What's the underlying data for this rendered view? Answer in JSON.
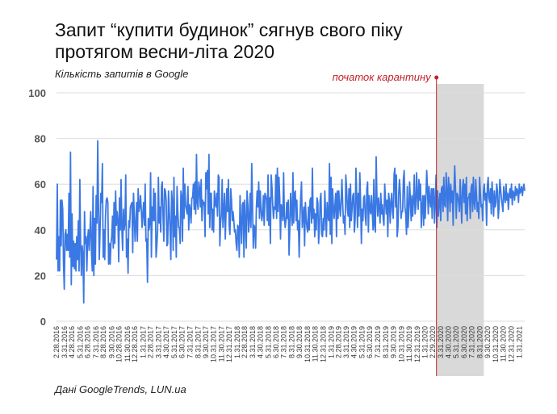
{
  "header": {
    "title_line1": "Запит “купити будинок” сягнув свого піку",
    "title_line2": "протягом весни-літа 2020",
    "subtitle": "Кількість запитів в Google"
  },
  "footer": {
    "source": "Дані GoogleTrends, LUN.ua"
  },
  "colors": {
    "line": "#3a78e4",
    "grid": "#dddddd",
    "marker": "#c0202a",
    "shade": "#d9d9d9"
  },
  "chart_data": {
    "type": "line",
    "title": "Запит “купити будинок” сягнув свого піку протягом весни-літа 2020",
    "ylabel": "Кількість запитів в Google",
    "ylim": [
      0,
      100
    ],
    "yticks": [
      0,
      20,
      40,
      60,
      80,
      100
    ],
    "grid": true,
    "x_start": "2.28.2016",
    "x_end": "2.21.2021",
    "xtick_labels": [
      "2.28.2016",
      "3.31.2016",
      "4.28.2016",
      "5.31.2016",
      "6.28.2016",
      "7.31.2016",
      "8.28.2016",
      "9.30.2016",
      "10.28.2016",
      "11.30.2016",
      "12.28.2016",
      "1.31.2017",
      "2.28.2017",
      "3.31.2017",
      "4.30.2017",
      "5.31.2017",
      "6.30.2017",
      "7.31.2017",
      "8.31.2017",
      "9.30.2017",
      "10.31.2017",
      "11.30.2017",
      "12.31.2017",
      "1.31.2018",
      "2.28.2018",
      "3.31.2018",
      "4.30.2018",
      "5.31.2018",
      "6.30.2018",
      "7.31.2018",
      "8.31.2018",
      "9.30.2018",
      "10.31.2018",
      "11.30.2018",
      "12.31.2018",
      "1.31.2019",
      "2.28.2019",
      "3.31.2019",
      "4.30.2019",
      "5.31.2019",
      "6.30.2019",
      "7.31.2019",
      "8.31.2019",
      "9.30.2019",
      "10.31.2019",
      "11.30.2019",
      "12.31.2019",
      "1.31.2020",
      "2.29.2020",
      "3.31.2020",
      "4.30.2020",
      "5.31.2020",
      "6.30.2020",
      "7.31.2020",
      "8.31.2020",
      "9.30.2020",
      "10.31.2020",
      "11.30.2020",
      "12.31.2020",
      "1.31.2021"
    ],
    "annotation": {
      "label": "початок карантину",
      "x": "3.15.2020"
    },
    "highlight_range": [
      "3.15.2020",
      "9.15.2020"
    ],
    "series": [
      {
        "values": [
          27,
          60,
          22,
          37,
          22,
          53,
          33,
          53,
          49,
          25,
          14,
          38,
          40,
          31,
          38,
          31,
          56,
          28,
          74,
          16,
          47,
          24,
          35,
          23,
          34,
          22,
          37,
          27,
          44,
          22,
          62,
          33,
          20,
          33,
          29,
          8,
          48,
          34,
          37,
          22,
          36,
          40,
          31,
          39,
          48,
          30,
          22,
          59,
          20,
          45,
          25,
          55,
          43,
          79,
          50,
          27,
          40,
          56,
          52,
          69,
          28,
          40,
          27,
          46,
          53,
          54,
          52,
          25,
          34,
          25,
          34,
          37,
          46,
          32,
          52,
          34,
          57,
          42,
          48,
          44,
          26,
          54,
          40,
          62,
          41,
          31,
          49,
          40,
          43,
          64,
          28,
          36,
          21,
          44,
          41,
          50,
          51,
          52,
          30,
          56,
          47,
          35,
          42,
          52,
          35,
          58,
          48,
          50,
          55,
          49,
          41,
          47,
          52,
          42,
          60,
          35,
          36,
          17,
          45,
          40,
          43,
          65,
          28,
          50,
          44,
          58,
          44,
          56,
          28,
          33,
          40,
          63,
          43,
          50,
          39,
          59,
          61,
          46,
          35,
          58,
          57,
          53,
          33,
          34,
          57,
          49,
          40,
          27,
          57,
          52,
          31,
          63,
          37,
          46,
          28,
          59,
          48,
          41,
          41,
          34,
          57,
          54,
          35,
          67,
          45,
          60,
          51,
          49,
          47,
          59,
          40,
          51,
          49,
          43,
          54,
          54,
          60,
          49,
          61,
          47,
          73,
          52,
          49,
          61,
          58,
          50,
          62,
          44,
          53,
          51,
          52,
          37,
          65,
          58,
          66,
          47,
          73,
          41,
          56,
          56,
          40,
          49,
          39,
          57,
          52,
          50,
          56,
          46,
          64,
          63,
          33,
          43,
          47,
          62,
          41,
          48,
          56,
          36,
          48,
          58,
          48,
          62,
          42,
          38,
          58,
          53,
          44,
          48,
          44,
          39,
          40,
          34,
          31,
          42,
          41,
          28,
          55,
          43,
          34,
          51,
          52,
          28,
          53,
          43,
          32,
          57,
          51,
          39,
          45,
          56,
          41,
          69,
          52,
          32,
          42,
          41,
          32,
          50,
          57,
          50,
          61,
          45,
          57,
          49,
          44,
          47,
          55,
          42,
          56,
          55,
          53,
          44,
          64,
          42,
          54,
          34,
          64,
          59,
          51,
          45,
          50,
          49,
          64,
          45,
          67,
          48,
          63,
          54,
          36,
          51,
          49,
          44,
          65,
          46,
          41,
          44,
          52,
          45,
          53,
          29,
          41,
          56,
          48,
          42,
          65,
          43,
          56,
          57,
          44,
          53,
          40,
          44,
          28,
          45,
          54,
          61,
          41,
          46,
          50,
          33,
          52,
          45,
          41,
          39,
          50,
          40,
          53,
          54,
          43,
          67,
          45,
          49,
          37,
          47,
          40,
          54,
          52,
          34,
          41,
          53,
          56,
          38,
          37,
          45,
          40,
          57,
          47,
          37,
          52,
          46,
          44,
          69,
          38,
          63,
          34,
          58,
          50,
          45,
          51,
          56,
          37,
          57,
          45,
          57,
          50,
          46,
          53,
          62,
          51,
          43,
          46,
          38,
          64,
          58,
          49,
          46,
          58,
          41,
          60,
          44,
          49,
          55,
          56,
          39,
          45,
          67,
          55,
          41,
          56,
          46,
          65,
          52,
          34,
          49,
          44,
          54,
          55,
          46,
          42,
          58,
          61,
          39,
          55,
          49,
          47,
          55,
          48,
          40,
          62,
          42,
          39,
          72,
          54,
          46,
          54,
          50,
          43,
          56,
          47,
          51,
          45,
          42,
          60,
          53,
          47,
          53,
          37,
          56,
          53,
          43,
          52,
          56,
          48,
          45,
          64,
          67,
          50,
          64,
          37,
          41,
          56,
          62,
          56,
          45,
          48,
          48,
          62,
          66,
          50,
          47,
          38,
          59,
          41,
          48,
          61,
          53,
          44,
          55,
          46,
          53,
          64,
          47,
          50,
          65,
          55,
          49,
          62,
          53,
          60,
          41,
          50,
          55,
          42,
          55,
          45,
          54,
          66,
          58,
          47,
          59,
          53,
          50,
          58,
          45,
          58,
          58,
          43,
          52,
          64,
          41,
          57,
          46,
          52,
          56,
          44,
          58,
          59,
          48,
          63,
          51,
          50,
          65,
          57,
          44,
          63,
          58,
          48,
          60,
          52,
          57,
          42,
          57,
          68,
          58,
          45,
          56,
          55,
          52,
          48,
          62,
          53,
          43,
          58,
          62,
          52,
          60,
          47,
          63,
          44,
          54,
          54,
          56,
          45,
          58,
          60,
          48,
          63,
          52,
          49,
          62,
          55,
          48,
          52,
          45,
          63,
          56,
          50,
          51,
          44,
          57,
          60,
          53,
          56,
          42,
          59,
          63,
          54,
          52,
          58,
          47,
          61,
          55,
          46,
          57,
          50,
          52,
          60,
          57,
          45,
          50,
          62,
          58,
          54,
          51,
          48,
          59,
          55,
          52,
          60,
          53,
          56,
          49,
          55,
          58,
          54,
          60,
          51,
          57,
          56,
          53,
          59,
          55,
          58,
          57,
          52,
          60,
          56,
          57,
          59,
          55,
          58,
          60,
          57
        ]
      }
    ]
  }
}
